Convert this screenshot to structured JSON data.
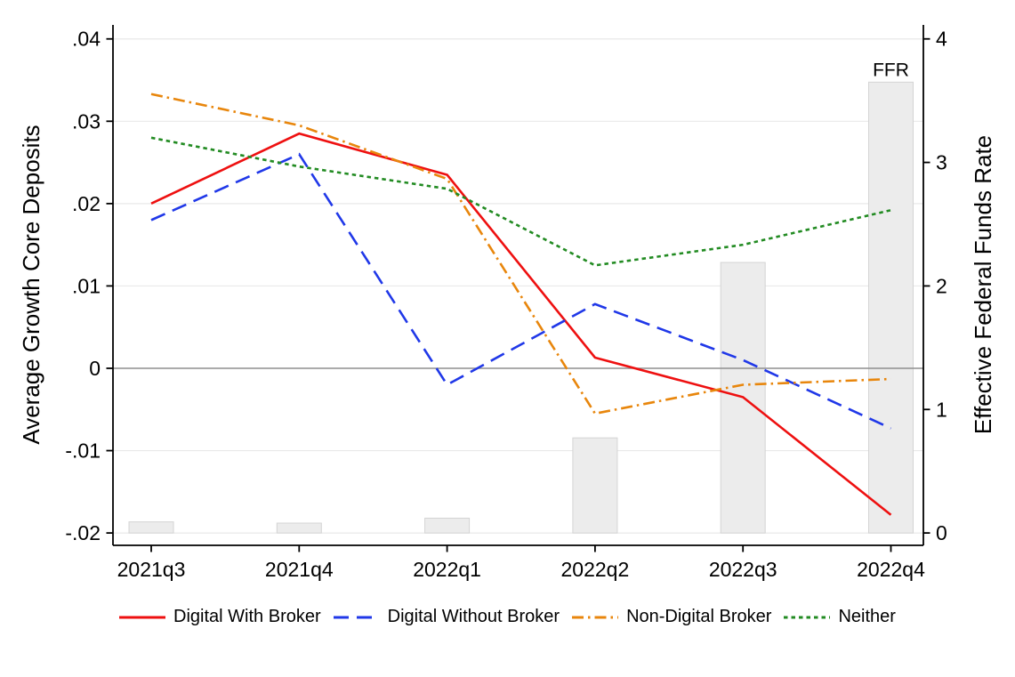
{
  "chart_data": {
    "type": "line",
    "subtype": "dual-axis line chart with background bars",
    "title": "",
    "categories": [
      "2021q3",
      "2021q4",
      "2022q1",
      "2022q2",
      "2022q3",
      "2022q4"
    ],
    "series": [
      {
        "name": "Digital With Broker",
        "color": "#ee1010",
        "style": "solid",
        "dash": [],
        "axis": "left",
        "values": [
          0.02,
          0.0285,
          0.0235,
          0.0013,
          -0.0035,
          -0.0178
        ]
      },
      {
        "name": "Digital Without Broker",
        "color": "#2038e8",
        "style": "long-dash",
        "dash": [
          17,
          9
        ],
        "axis": "left",
        "values": [
          0.018,
          0.026,
          -0.002,
          0.0078,
          0.001,
          -0.0073
        ]
      },
      {
        "name": "Non-Digital Broker",
        "color": "#e8860c",
        "style": "dash-dot",
        "dash": [
          13,
          5,
          2.5,
          5
        ],
        "axis": "left",
        "values": [
          0.0333,
          0.0295,
          0.023,
          -0.0055,
          -0.002,
          -0.0013
        ]
      },
      {
        "name": "Neither",
        "color": "#228b22",
        "style": "short-dash",
        "dash": [
          4.5,
          4
        ],
        "axis": "left",
        "values": [
          0.028,
          0.0245,
          0.0218,
          0.0125,
          0.015,
          0.0192
        ]
      }
    ],
    "bars": {
      "name": "FFR",
      "axis": "right",
      "fill": "#ececec",
      "border": "#d4d4d4",
      "values": [
        0.09,
        0.08,
        0.12,
        0.77,
        2.19,
        3.65
      ],
      "annotation": {
        "text": "FFR",
        "category_index": 5
      }
    },
    "left_axis": {
      "label": "Average Growth Core Deposits",
      "range": [
        -0.0215,
        0.0417
      ],
      "ticks": [
        {
          "value": 0.04,
          "label": ".04"
        },
        {
          "value": 0.03,
          "label": ".03"
        },
        {
          "value": 0.02,
          "label": ".02"
        },
        {
          "value": 0.01,
          "label": ".01"
        },
        {
          "value": 0.0,
          "label": "0"
        },
        {
          "value": -0.01,
          "label": "-.01"
        },
        {
          "value": -0.02,
          "label": "-.02"
        }
      ]
    },
    "right_axis": {
      "label": "Effective Federal Funds Rate",
      "range": [
        -0.1,
        4.1133
      ],
      "ticks": [
        {
          "value": 4,
          "label": "4"
        },
        {
          "value": 3,
          "label": "3"
        },
        {
          "value": 2,
          "label": "2"
        },
        {
          "value": 1,
          "label": "1"
        },
        {
          "value": 0,
          "label": "0"
        }
      ]
    },
    "reference_line": {
      "value": 0,
      "axis": "left",
      "color": "#8f8f8f"
    },
    "grid": {
      "show": true,
      "color": "#e9e9e9"
    },
    "legend_position": "bottom",
    "legend_entries": [
      "Digital With Broker",
      "Digital Without Broker",
      "Non-Digital Broker",
      "Neither"
    ]
  }
}
